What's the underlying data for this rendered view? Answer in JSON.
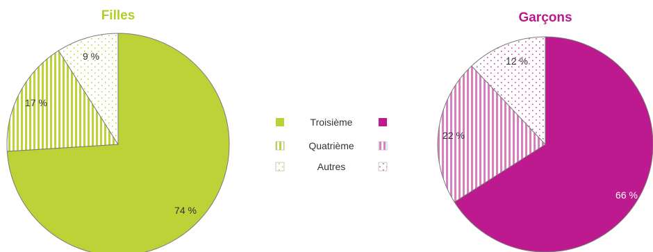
{
  "chart_data": [
    {
      "type": "pie",
      "title": "Filles",
      "title_color": "#b4cc2a",
      "start": "top",
      "direction": "clockwise",
      "slices": [
        {
          "label": "Troisième",
          "value": 74,
          "value_label": "74 %",
          "color": "#bdd236",
          "pattern": "solid"
        },
        {
          "label": "Quatrième",
          "value": 17,
          "value_label": "17 %",
          "color": "#bdd236",
          "pattern": "stripes"
        },
        {
          "label": "Autres",
          "value": 9,
          "value_label": "9 %",
          "color": "#bdd236",
          "pattern": "dots"
        }
      ]
    },
    {
      "type": "pie",
      "title": "Garçons",
      "title_color": "#b8198b",
      "start": "top",
      "direction": "clockwise",
      "slices": [
        {
          "label": "Troisième",
          "value": 66,
          "value_label": "66 %",
          "color": "#bc1a8e",
          "pattern": "solid"
        },
        {
          "label": "Quatrième",
          "value": 22,
          "value_label": "22 %",
          "color": "#d77fbf",
          "pattern": "stripes"
        },
        {
          "label": "Autres",
          "value": 12,
          "value_label": "12 %",
          "color": "#d77fbf",
          "pattern": "dots"
        }
      ]
    }
  ],
  "legend": {
    "placement": "center",
    "items": [
      "Troisième",
      "Quatrième",
      "Autres"
    ]
  }
}
